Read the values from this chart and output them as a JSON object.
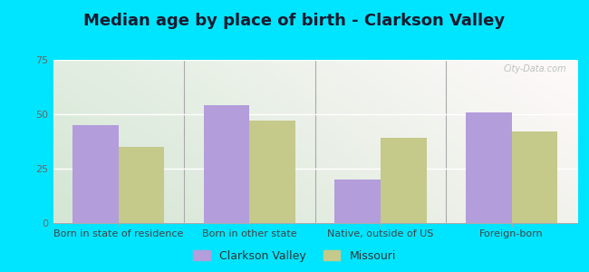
{
  "title": "Median age by place of birth - Clarkson Valley",
  "categories": [
    "Born in state of residence",
    "Born in other state",
    "Native, outside of US",
    "Foreign-born"
  ],
  "clarkson_values": [
    45,
    54,
    20,
    51
  ],
  "missouri_values": [
    35,
    47,
    39,
    42
  ],
  "clarkson_color": "#b39ddb",
  "missouri_color": "#c5c98a",
  "ylim": [
    0,
    75
  ],
  "yticks": [
    0,
    25,
    50,
    75
  ],
  "background_outer": "#00e5ff",
  "legend_clarkson": "Clarkson Valley",
  "legend_missouri": "Missouri",
  "title_fontsize": 13,
  "tick_fontsize": 8,
  "legend_fontsize": 9,
  "bar_width": 0.35,
  "watermark": "City-Data.com"
}
